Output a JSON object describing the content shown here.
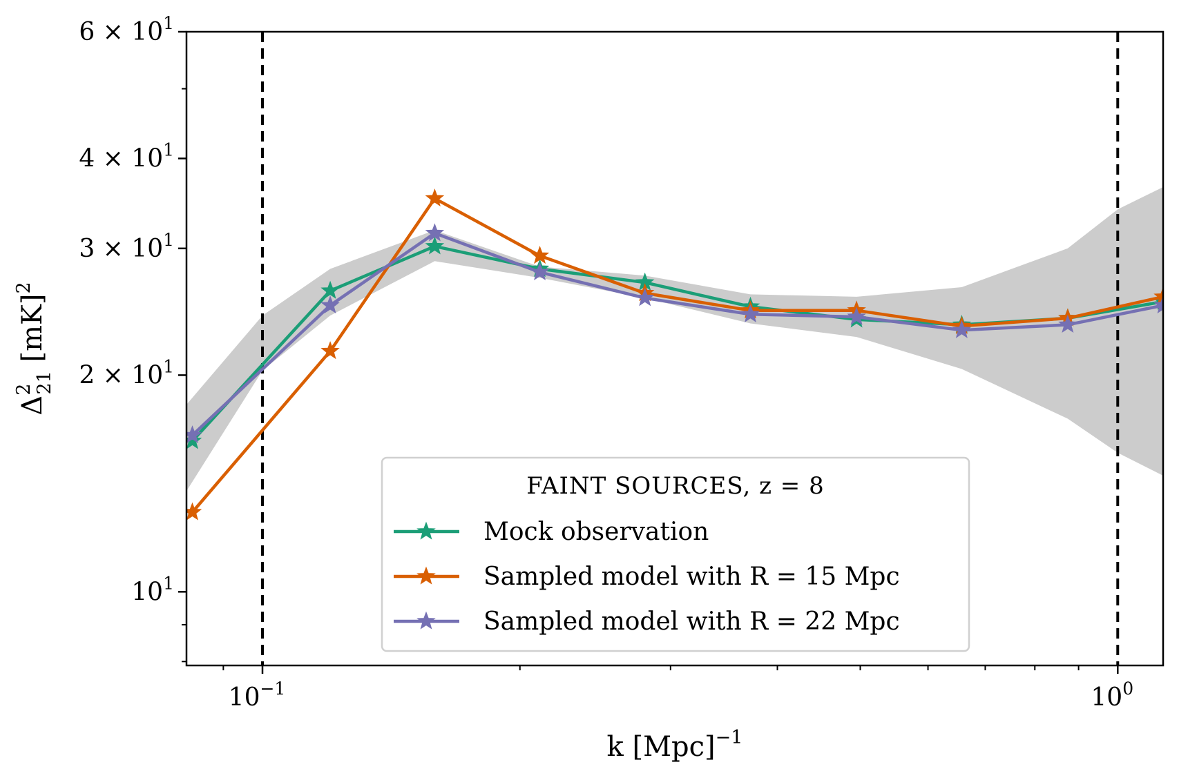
{
  "chart_data": {
    "type": "line",
    "xscale": "log",
    "yscale": "log",
    "xlim": [
      0.0815,
      1.13
    ],
    "ylim": [
      7.9,
      60
    ],
    "xlabel": "k [Mpc]",
    "xlabel_exp": "−1",
    "ylabel": "Δ",
    "ylabel_sup": "2",
    "ylabel_sub": "21",
    "ylabel_unit": " [mK]",
    "ylabel_unit_sup": "2",
    "x_ticks": [
      {
        "value": 0.1,
        "base": "10",
        "exp": "−1"
      },
      {
        "value": 1.0,
        "base": "10",
        "exp": "0"
      }
    ],
    "y_ticks": [
      {
        "value": 10,
        "text": "10",
        "exp": "1"
      },
      {
        "value": 20,
        "text": "2 × 10",
        "exp": "1"
      },
      {
        "value": 30,
        "text": "3 × 10",
        "exp": "1"
      },
      {
        "value": 40,
        "text": "4 × 10",
        "exp": "1"
      },
      {
        "value": 60,
        "text": "6 × 10",
        "exp": "1"
      }
    ],
    "vlines": [
      0.1,
      1.0
    ],
    "legend": {
      "title": "FAINT SOURCES, z = 8",
      "placement": "lower-center"
    },
    "band": {
      "color": "#cccccc",
      "x": [
        0.0815,
        0.1,
        0.12,
        0.159,
        0.211,
        0.28,
        0.372,
        0.495,
        0.657,
        0.874,
        1.0,
        1.13
      ],
      "lower": [
        13.8,
        20.3,
        24.2,
        28.8,
        27.3,
        25.6,
        23.6,
        22.6,
        20.4,
        17.4,
        15.6,
        14.5
      ],
      "upper": [
        18.2,
        24.2,
        28.1,
        31.8,
        28.3,
        27.5,
        25.9,
        25.7,
        26.5,
        30.0,
        34.0,
        36.5
      ]
    },
    "series": [
      {
        "name": "Mock observation",
        "color": "#1b9e77",
        "x": [
          0.0828,
          0.12,
          0.159,
          0.211,
          0.28,
          0.372,
          0.495,
          0.657,
          0.874,
          1.13
        ],
        "values": [
          16.2,
          26.2,
          30.2,
          28.1,
          26.9,
          24.9,
          23.9,
          23.5,
          24.0,
          25.3
        ]
      },
      {
        "name": "Sampled model with R = 15 Mpc",
        "color": "#d95f02",
        "x": [
          0.0828,
          0.12,
          0.159,
          0.211,
          0.28,
          0.372,
          0.495,
          0.657,
          0.874,
          1.13
        ],
        "values": [
          12.9,
          21.6,
          35.2,
          29.3,
          26.0,
          24.6,
          24.6,
          23.4,
          24.0,
          25.7
        ]
      },
      {
        "name": "Sampled model with R = 22 Mpc",
        "color": "#7570b3",
        "x": [
          0.0828,
          0.12,
          0.159,
          0.211,
          0.28,
          0.372,
          0.495,
          0.657,
          0.874,
          1.13
        ],
        "values": [
          16.5,
          25.0,
          31.5,
          27.8,
          25.6,
          24.3,
          24.1,
          23.1,
          23.5,
          25.0
        ]
      }
    ]
  }
}
